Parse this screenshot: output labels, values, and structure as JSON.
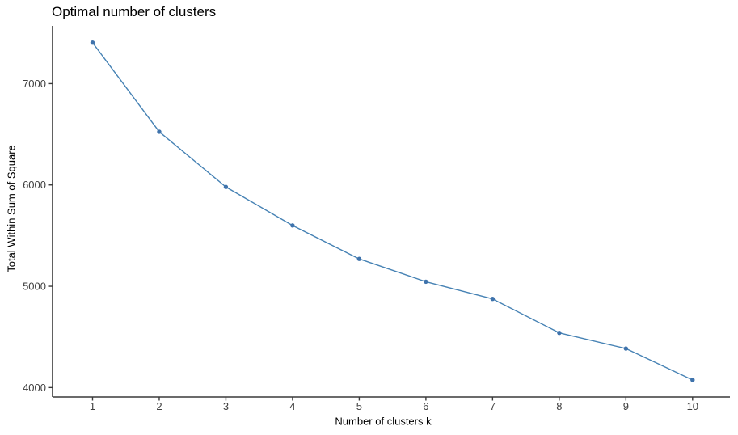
{
  "chart_data": {
    "type": "line",
    "title": "Optimal number of clusters",
    "xlabel": "Number of clusters k",
    "ylabel": "Total Within Sum of Square",
    "x": [
      1,
      2,
      3,
      4,
      5,
      6,
      7,
      8,
      9,
      10
    ],
    "series": [
      {
        "name": "Total within sum of square",
        "values": [
          7405,
          6525,
          5980,
          5600,
          5270,
          5045,
          4875,
          4540,
          4385,
          4075
        ]
      }
    ],
    "x_ticks": [
      "1",
      "2",
      "3",
      "4",
      "5",
      "6",
      "7",
      "8",
      "9",
      "10"
    ],
    "x_tick_values": [
      1,
      2,
      3,
      4,
      5,
      6,
      7,
      8,
      9,
      10
    ],
    "y_ticks": [
      "4000",
      "5000",
      "6000",
      "7000"
    ],
    "y_tick_values": [
      4000,
      5000,
      6000,
      7000
    ],
    "xlim": [
      0.4,
      10.56
    ],
    "ylim": [
      3907,
      7570
    ],
    "grid": false,
    "legend": "none",
    "marker": "circle",
    "colors": {
      "line": "#4682B4",
      "point": "#3F73AC",
      "axis": "#3A3A3A",
      "tick_label": "#404040"
    }
  }
}
